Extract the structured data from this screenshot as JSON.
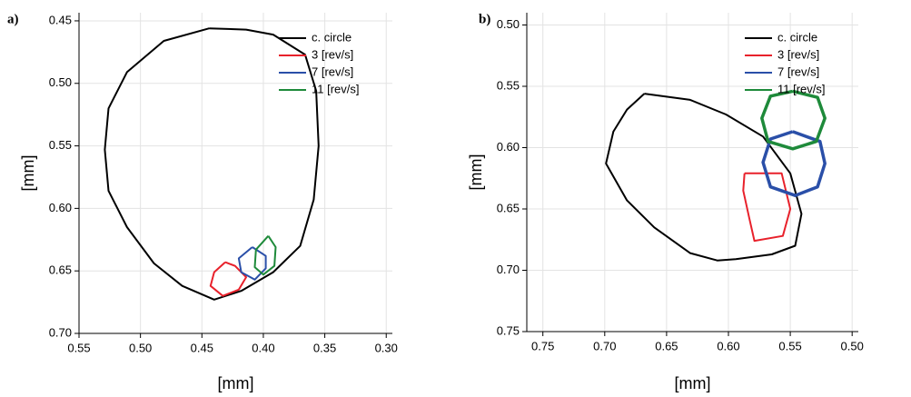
{
  "chart_data": [
    {
      "type": "line",
      "panel_label": "a)",
      "xlabel": "[mm]",
      "ylabel": "[mm]",
      "xlim": [
        0.55,
        0.295
      ],
      "ylim": [
        0.7,
        0.4435
      ],
      "grid": true,
      "legend": "upper right",
      "xticks": [
        {
          "value": 0.55,
          "label": "0.55"
        },
        {
          "value": 0.5,
          "label": "0.50"
        },
        {
          "value": 0.45,
          "label": "0.45"
        },
        {
          "value": 0.4,
          "label": "0.40"
        },
        {
          "value": 0.35,
          "label": "0.35"
        },
        {
          "value": 0.3,
          "label": "0.30"
        }
      ],
      "yticks": [
        {
          "value": 0.45,
          "label": "0.45"
        },
        {
          "value": 0.5,
          "label": "0.50"
        },
        {
          "value": 0.55,
          "label": "0.55"
        },
        {
          "value": 0.6,
          "label": "0.60"
        },
        {
          "value": 0.65,
          "label": "0.65"
        },
        {
          "value": 0.7,
          "label": "0.70"
        }
      ],
      "series": [
        {
          "name": "c. circle",
          "color": "#000000",
          "width": 2,
          "x": [
            0.444,
            0.481,
            0.511,
            0.526,
            0.529,
            0.526,
            0.511,
            0.489,
            0.466,
            0.44,
            0.418,
            0.392,
            0.37,
            0.359,
            0.355,
            0.357,
            0.366,
            0.392,
            0.414,
            0.444
          ],
          "values": [
            0.456,
            0.466,
            0.491,
            0.52,
            0.553,
            0.586,
            0.615,
            0.644,
            0.662,
            0.673,
            0.666,
            0.651,
            0.63,
            0.593,
            0.55,
            0.506,
            0.477,
            0.461,
            0.457,
            0.456
          ]
        },
        {
          "name": "3 [rev/s]",
          "color": "#e8212b",
          "width": 2,
          "x": [
            0.431,
            0.44,
            0.443,
            0.433,
            0.42,
            0.414,
            0.423,
            0.431
          ],
          "values": [
            0.643,
            0.651,
            0.662,
            0.67,
            0.665,
            0.655,
            0.646,
            0.643
          ]
        },
        {
          "name": "7 [rev/s]",
          "color": "#2a4fa8",
          "width": 2,
          "x": [
            0.409,
            0.398,
            0.398,
            0.407,
            0.418,
            0.42,
            0.409
          ],
          "values": [
            0.631,
            0.638,
            0.648,
            0.657,
            0.651,
            0.64,
            0.631
          ]
        },
        {
          "name": "11 [rev/s]",
          "color": "#1e8a3a",
          "width": 2,
          "x": [
            0.396,
            0.39,
            0.391,
            0.4,
            0.407,
            0.406,
            0.396
          ],
          "values": [
            0.622,
            0.631,
            0.646,
            0.653,
            0.647,
            0.633,
            0.622
          ]
        }
      ]
    },
    {
      "type": "line",
      "panel_label": "b)",
      "xlabel": "[mm]",
      "ylabel": "[mm]",
      "xlim": [
        0.763,
        0.495
      ],
      "ylim": [
        0.75,
        0.49
      ],
      "grid": true,
      "legend": "upper right",
      "xticks": [
        {
          "value": 0.75,
          "label": "0.75"
        },
        {
          "value": 0.7,
          "label": "0.70"
        },
        {
          "value": 0.65,
          "label": "0.65"
        },
        {
          "value": 0.6,
          "label": "0.60"
        },
        {
          "value": 0.55,
          "label": "0.55"
        },
        {
          "value": 0.5,
          "label": "0.50"
        }
      ],
      "yticks": [
        {
          "value": 0.5,
          "label": "0.50"
        },
        {
          "value": 0.55,
          "label": "0.55"
        },
        {
          "value": 0.6,
          "label": "0.60"
        },
        {
          "value": 0.65,
          "label": "0.65"
        },
        {
          "value": 0.7,
          "label": "0.70"
        },
        {
          "value": 0.75,
          "label": "0.75"
        }
      ],
      "series": [
        {
          "name": "c. circle",
          "color": "#000000",
          "width": 2,
          "x": [
            0.668,
            0.631,
            0.602,
            0.572,
            0.55,
            0.541,
            0.546,
            0.565,
            0.594,
            0.609,
            0.631,
            0.66,
            0.682,
            0.699,
            0.693,
            0.682,
            0.668
          ],
          "values": [
            0.556,
            0.561,
            0.573,
            0.591,
            0.621,
            0.654,
            0.68,
            0.687,
            0.691,
            0.692,
            0.686,
            0.665,
            0.643,
            0.613,
            0.587,
            0.569,
            0.556
          ]
        },
        {
          "name": "3 [rev/s]",
          "color": "#e8212b",
          "width": 2,
          "x": [
            0.587,
            0.557,
            0.55,
            0.556,
            0.579,
            0.583,
            0.588,
            0.587
          ],
          "values": [
            0.621,
            0.621,
            0.65,
            0.672,
            0.676,
            0.658,
            0.635,
            0.621
          ]
        },
        {
          "name": "7 [rev/s]",
          "color": "#2a4fa8",
          "width": 3.5,
          "x": [
            0.548,
            0.526,
            0.522,
            0.528,
            0.546,
            0.566,
            0.572,
            0.566,
            0.548
          ],
          "values": [
            0.587,
            0.595,
            0.613,
            0.632,
            0.639,
            0.632,
            0.612,
            0.593,
            0.587
          ]
        },
        {
          "name": "11 [rev/s]",
          "color": "#1e8a3a",
          "width": 3.5,
          "x": [
            0.548,
            0.528,
            0.522,
            0.529,
            0.548,
            0.568,
            0.573,
            0.566,
            0.548
          ],
          "values": [
            0.554,
            0.559,
            0.576,
            0.595,
            0.601,
            0.595,
            0.576,
            0.558,
            0.554
          ]
        }
      ]
    }
  ]
}
